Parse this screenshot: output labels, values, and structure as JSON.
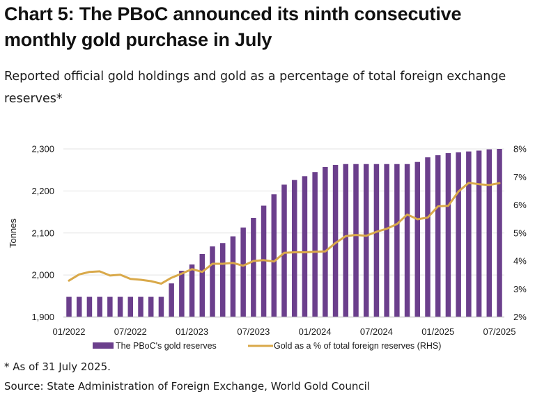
{
  "header": {
    "title": "Chart 5: The PBoC announced its ninth consecutive monthly gold purchase in July",
    "subtitle": "Reported official gold holdings and gold as a percentage of total foreign exchange reserves*"
  },
  "footer": {
    "footnote": "* As of 31 July 2025.",
    "source": "Source: State Administration of Foreign Exchange, World Gold Council"
  },
  "colors": {
    "bars": "#6B3F8C",
    "line": "#D9A94A",
    "grid": "#e3e3e3",
    "axis": "#bdbdbd"
  },
  "chart_data": {
    "type": "bar",
    "title": "Chart 5: The PBoC announced its ninth consecutive monthly gold purchase in July",
    "subtitle": "Reported official gold holdings and gold as a percentage of total foreign exchange reserves*",
    "xlabel": "",
    "ylabel": "Tonnes",
    "y2label": "",
    "ylim": [
      1900,
      2300
    ],
    "y2lim": [
      2,
      8
    ],
    "grid": true,
    "legend_position": "bottom",
    "yticks": [
      "1,900",
      "2,000",
      "2,100",
      "2,200",
      "2,300"
    ],
    "yticks_values": [
      1900,
      2000,
      2100,
      2200,
      2300
    ],
    "y2ticks": [
      "2%",
      "3%",
      "4%",
      "5%",
      "6%",
      "7%",
      "8%"
    ],
    "y2ticks_values": [
      2,
      3,
      4,
      5,
      6,
      7,
      8
    ],
    "xtick_labels": [
      "01/2022",
      "07/2022",
      "01/2023",
      "07/2023",
      "01/2024",
      "07/2024",
      "01/2025",
      "07/2025"
    ],
    "xtick_indices": [
      0,
      6,
      12,
      18,
      24,
      30,
      36,
      42
    ],
    "categories": [
      "01/2022",
      "02/2022",
      "03/2022",
      "04/2022",
      "05/2022",
      "06/2022",
      "07/2022",
      "08/2022",
      "09/2022",
      "10/2022",
      "11/2022",
      "12/2022",
      "01/2023",
      "02/2023",
      "03/2023",
      "04/2023",
      "05/2023",
      "06/2023",
      "07/2023",
      "08/2023",
      "09/2023",
      "10/2023",
      "11/2023",
      "12/2023",
      "01/2024",
      "02/2024",
      "03/2024",
      "04/2024",
      "05/2024",
      "06/2024",
      "07/2024",
      "08/2024",
      "09/2024",
      "10/2024",
      "11/2024",
      "12/2024",
      "01/2025",
      "02/2025",
      "03/2025",
      "04/2025",
      "05/2025",
      "06/2025",
      "07/2025"
    ],
    "series": [
      {
        "name": "The PBoC's gold reserves",
        "type": "bar",
        "axis": "left",
        "values": [
          1948,
          1948,
          1948,
          1948,
          1948,
          1948,
          1948,
          1948,
          1948,
          1948,
          1980,
          2010,
          2025,
          2050,
          2068,
          2076,
          2092,
          2113,
          2136,
          2165,
          2192,
          2215,
          2226,
          2235,
          2245,
          2257,
          2262,
          2264,
          2264,
          2264,
          2264,
          2264,
          2264,
          2264,
          2269,
          2280,
          2285,
          2290,
          2292,
          2294,
          2296,
          2299,
          2300
        ]
      },
      {
        "name": "Gold as a % of total foreign reserves (RHS)",
        "type": "line",
        "axis": "right",
        "values": [
          3.3,
          3.52,
          3.61,
          3.63,
          3.48,
          3.51,
          3.36,
          3.33,
          3.28,
          3.19,
          3.4,
          3.55,
          3.71,
          3.61,
          3.9,
          3.9,
          3.93,
          3.83,
          4.0,
          4.03,
          3.98,
          4.29,
          4.31,
          4.31,
          4.33,
          4.34,
          4.64,
          4.89,
          4.93,
          4.9,
          5.04,
          5.15,
          5.32,
          5.66,
          5.49,
          5.55,
          5.95,
          5.97,
          6.48,
          6.79,
          6.74,
          6.71,
          6.78
        ]
      }
    ]
  }
}
